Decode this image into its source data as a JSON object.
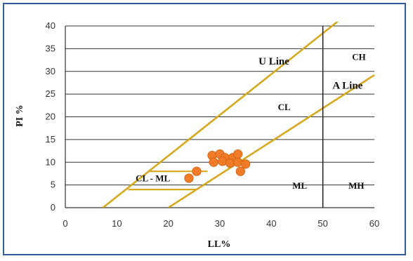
{
  "chart_data": {
    "type": "scatter",
    "title": "",
    "xlabel": "LL%",
    "ylabel": "PI  %",
    "xlim": [
      0,
      60
    ],
    "ylim": [
      0,
      40
    ],
    "xticks": [
      "0",
      "10",
      "20",
      "30",
      "40",
      "50",
      "60"
    ],
    "yticks": [
      "0",
      "5",
      "10",
      "15",
      "20",
      "25",
      "30",
      "35",
      "40"
    ],
    "grid": "horizontal",
    "line_color": "#d6a81c",
    "point_color": "#f07c2a",
    "divider_ll": 50,
    "u_line": [
      [
        7.3,
        0
      ],
      [
        52.9,
        41
      ]
    ],
    "a_line": [
      [
        20,
        0
      ],
      [
        60,
        29.2
      ]
    ],
    "cl_ml_zone": {
      "x": [
        12.2,
        25.5,
        27.6,
        16.4
      ],
      "y": [
        4,
        4,
        8,
        8
      ]
    },
    "points": [
      {
        "x": 24,
        "y": 6.5
      },
      {
        "x": 25.5,
        "y": 8
      },
      {
        "x": 28.5,
        "y": 11.5
      },
      {
        "x": 30,
        "y": 11.8
      },
      {
        "x": 31,
        "y": 11
      },
      {
        "x": 32.5,
        "y": 11
      },
      {
        "x": 33.5,
        "y": 11.8
      },
      {
        "x": 28.8,
        "y": 10
      },
      {
        "x": 30.5,
        "y": 10.2
      },
      {
        "x": 32,
        "y": 9.8
      },
      {
        "x": 33.5,
        "y": 10
      },
      {
        "x": 35,
        "y": 9.6
      },
      {
        "x": 34,
        "y": 8
      }
    ],
    "annotations": [
      {
        "text": "U  Line",
        "x": 40.5,
        "y": 31.5,
        "size": "big"
      },
      {
        "text": "CH",
        "x": 57,
        "y": 32.5,
        "size": "normal"
      },
      {
        "text": "A  Line",
        "x": 54.8,
        "y": 26.2,
        "size": "big"
      },
      {
        "text": "CL",
        "x": 42.5,
        "y": 21.5,
        "size": "normal"
      },
      {
        "text": "CL - ML",
        "x": 17,
        "y": 5.8,
        "size": "normal"
      },
      {
        "text": "ML",
        "x": 45.5,
        "y": 4.2,
        "size": "normal"
      },
      {
        "text": "MH",
        "x": 56.5,
        "y": 4.2,
        "size": "normal"
      }
    ]
  }
}
